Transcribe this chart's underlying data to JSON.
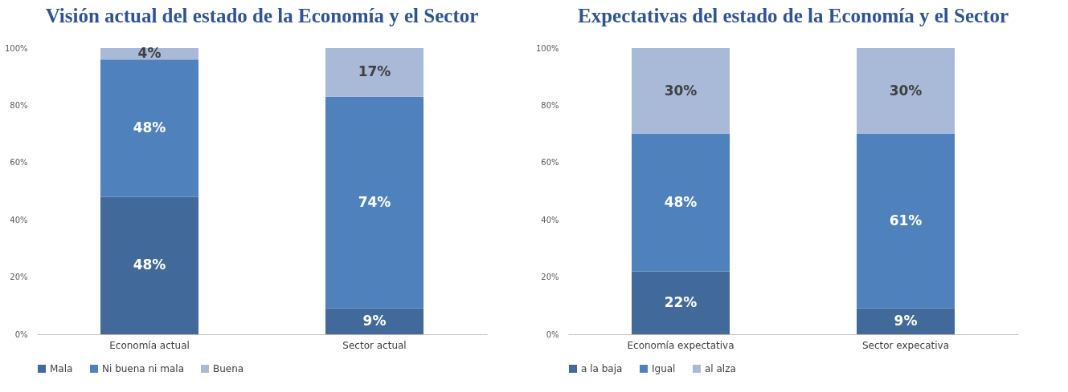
{
  "chart_data": [
    {
      "type": "bar",
      "title": "Visión actual del estado de la Economía y el Sector",
      "stacked": true,
      "categories": [
        "Economía actual",
        "Sector actual"
      ],
      "series": [
        {
          "name": "Mala",
          "color": "#41699a",
          "values": [
            48,
            9
          ],
          "value_labels": [
            "48%",
            "9%"
          ]
        },
        {
          "name": "Ni buena ni mala",
          "color": "#4f81bd",
          "values": [
            48,
            74
          ],
          "value_labels": [
            "48%",
            "74%"
          ]
        },
        {
          "name": "Buena",
          "color": "#a9b9d8",
          "values": [
            4,
            17
          ],
          "value_labels": [
            "4%",
            "17%"
          ]
        }
      ],
      "ylim": [
        0,
        100
      ],
      "yticks": [
        {
          "value": 0,
          "label": "0%"
        },
        {
          "value": 20,
          "label": "20%"
        },
        {
          "value": 40,
          "label": "40%"
        },
        {
          "value": 60,
          "label": "60%"
        },
        {
          "value": 80,
          "label": "80%"
        },
        {
          "value": 100,
          "label": "100%"
        }
      ],
      "grid": false,
      "legend": "bottom"
    },
    {
      "type": "bar",
      "title": "Expectativas del estado de la Economía y el Sector",
      "stacked": true,
      "categories": [
        "Economía expectativa",
        "Sector expecativa"
      ],
      "series": [
        {
          "name": "a la baja",
          "color": "#41699a",
          "values": [
            22,
            9
          ],
          "value_labels": [
            "22%",
            "9%"
          ]
        },
        {
          "name": "Igual",
          "color": "#4f81bd",
          "values": [
            48,
            61
          ],
          "value_labels": [
            "48%",
            "61%"
          ]
        },
        {
          "name": "al alza",
          "color": "#a9b9d8",
          "values": [
            30,
            30
          ],
          "value_labels": [
            "30%",
            "30%"
          ]
        }
      ],
      "ylim": [
        0,
        100
      ],
      "yticks": [
        {
          "value": 0,
          "label": "0%"
        },
        {
          "value": 20,
          "label": "20%"
        },
        {
          "value": 40,
          "label": "40%"
        },
        {
          "value": 60,
          "label": "60%"
        },
        {
          "value": 80,
          "label": "80%"
        },
        {
          "value": 100,
          "label": "100%"
        }
      ],
      "grid": false,
      "legend": "bottom"
    }
  ]
}
